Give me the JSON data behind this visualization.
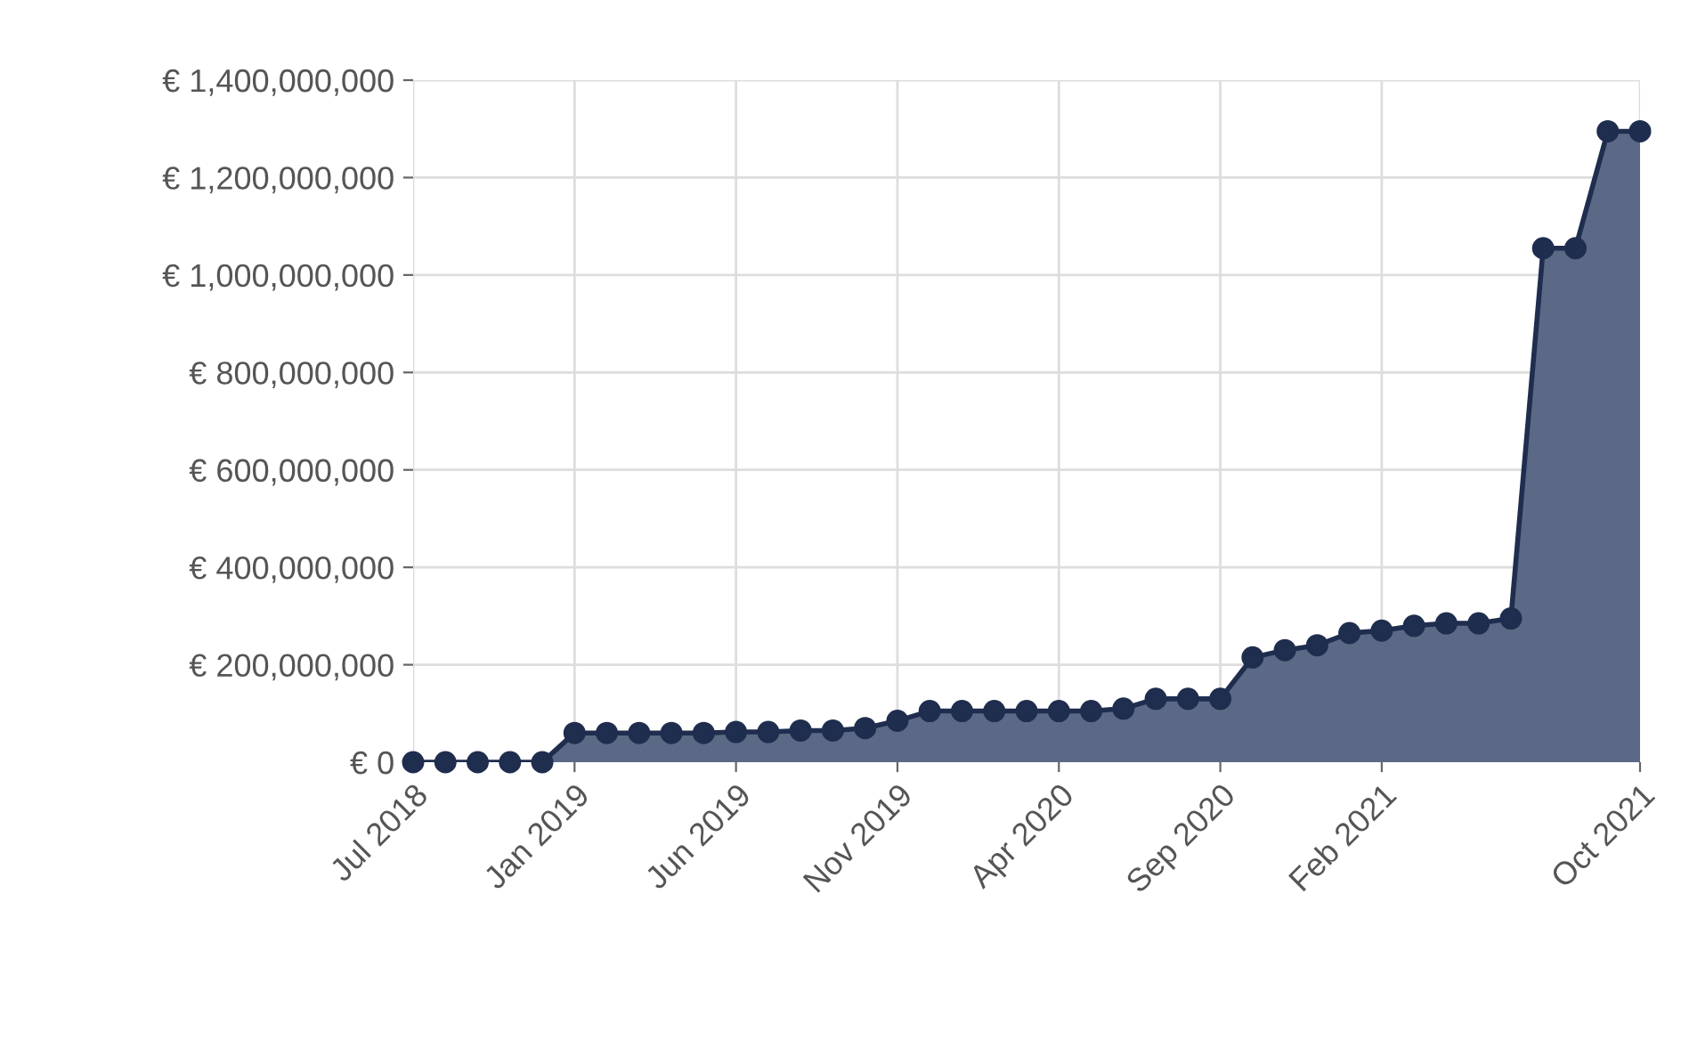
{
  "chart_data": {
    "type": "area",
    "categories": [
      "Jul 2018",
      null,
      null,
      null,
      null,
      "Jan 2019",
      null,
      null,
      null,
      null,
      "Jun 2019",
      null,
      null,
      null,
      null,
      "Nov 2019",
      null,
      null,
      null,
      null,
      "Apr 2020",
      null,
      null,
      null,
      null,
      "Sep 2020",
      null,
      null,
      null,
      null,
      "Feb 2021",
      null,
      null,
      null,
      null,
      null,
      null,
      null,
      "Oct 2021"
    ],
    "series": [
      {
        "color": "#1f2d4e",
        "values": [
          0,
          0,
          0,
          0,
          0,
          60000000,
          60000000,
          60000000,
          60000000,
          60000000,
          62000000,
          62000000,
          65000000,
          65000000,
          70000000,
          85000000,
          105000000,
          105000000,
          105000000,
          105000000,
          105000000,
          105000000,
          110000000,
          130000000,
          130000000,
          130000000,
          215000000,
          230000000,
          240000000,
          265000000,
          270000000,
          280000000,
          285000000,
          285000000,
          295000000,
          1055000000,
          1055000000,
          1295000000,
          1295000000
        ]
      }
    ],
    "ylim": [
      0,
      1400000000
    ],
    "yticks": [
      {
        "value": 0,
        "label": "€ 0"
      },
      {
        "value": 200000000,
        "label": "€ 200,000,000"
      },
      {
        "value": 400000000,
        "label": "€ 400,000,000"
      },
      {
        "value": 600000000,
        "label": "€ 600,000,000"
      },
      {
        "value": 800000000,
        "label": "€ 800,000,000"
      },
      {
        "value": 1000000000,
        "label": "€ 1,000,000,000"
      },
      {
        "value": 1200000000,
        "label": "€ 1,200,000,000"
      },
      {
        "value": 1400000000,
        "label": "€ 1,400,000,000"
      }
    ],
    "grid": true,
    "marker": "circle",
    "line_style": "solid",
    "legend": false
  }
}
